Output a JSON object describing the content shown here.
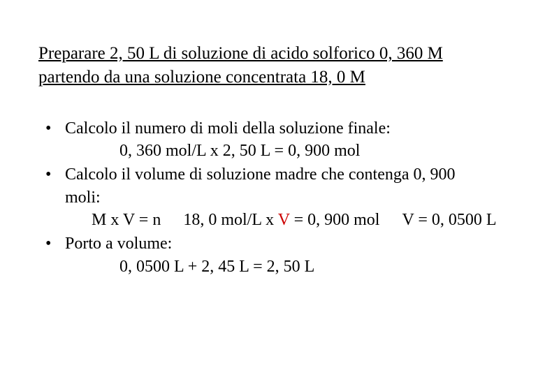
{
  "title_line1": "Preparare 2, 50 L di soluzione di acido solforico 0, 360 M",
  "title_line2": "partendo da una soluzione concentrata 18, 0 M",
  "b1_line1": "Calcolo il numero di moli della soluzione finale:",
  "b1_calc": "0, 360 mol/L x 2, 50 L = 0, 900 mol",
  "b2_line1": "Calcolo il volume di soluzione madre che contenga 0, 900",
  "b2_line2": "moli:",
  "b2_calc_a": "M x V = n",
  "b2_calc_b1": "18, 0 mol/L x ",
  "b2_calc_V": "V",
  "b2_calc_b2": " = 0, 900 mol",
  "b2_calc_c": "V = 0, 0500 L",
  "b3_line1": "Porto a volume:",
  "b3_calc": "0, 0500 L + 2, 45 L = 2, 50 L"
}
